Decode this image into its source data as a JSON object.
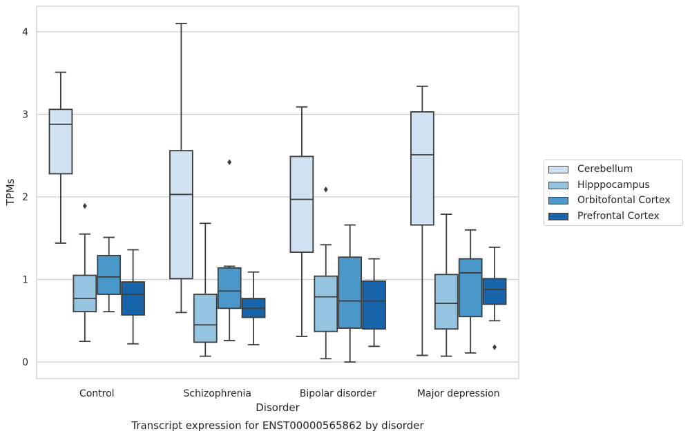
{
  "chart_data": {
    "type": "box",
    "title": "Transcript expression for ENST00000565862 by disorder",
    "xlabel": "Disorder",
    "ylabel": "TPMs",
    "ylim": [
      -0.2,
      4.3
    ],
    "yticks": [
      0,
      1,
      2,
      3,
      4
    ],
    "grid": true,
    "legend_position": "right",
    "categories": [
      "Control",
      "Schizophrenia",
      "Bipolar disorder",
      "Major depression"
    ],
    "series": [
      {
        "name": "Cerebellum",
        "color": "#d0e1f2",
        "boxes": [
          {
            "whislo": 1.44,
            "q1": 2.28,
            "med": 2.88,
            "q3": 3.06,
            "whishi": 3.51,
            "fliers": []
          },
          {
            "whislo": 0.6,
            "q1": 1.01,
            "med": 2.03,
            "q3": 2.56,
            "whishi": 4.1,
            "fliers": []
          },
          {
            "whislo": 0.31,
            "q1": 1.33,
            "med": 1.97,
            "q3": 2.49,
            "whishi": 3.09,
            "fliers": []
          },
          {
            "whislo": 0.08,
            "q1": 1.66,
            "med": 2.51,
            "q3": 3.03,
            "whishi": 3.34,
            "fliers": []
          }
        ]
      },
      {
        "name": "Hipppocampus",
        "color": "#94c4df",
        "boxes": [
          {
            "whislo": 0.25,
            "q1": 0.61,
            "med": 0.77,
            "q3": 1.05,
            "whishi": 1.55,
            "fliers": [
              1.89
            ]
          },
          {
            "whislo": 0.07,
            "q1": 0.24,
            "med": 0.45,
            "q3": 0.82,
            "whishi": 1.68,
            "fliers": []
          },
          {
            "whislo": 0.04,
            "q1": 0.37,
            "med": 0.79,
            "q3": 1.04,
            "whishi": 1.42,
            "fliers": [
              2.09
            ]
          },
          {
            "whislo": 0.07,
            "q1": 0.4,
            "med": 0.71,
            "q3": 1.06,
            "whishi": 1.79,
            "fliers": []
          }
        ]
      },
      {
        "name": "Orbitofontal Cortex",
        "color": "#4a98c9",
        "boxes": [
          {
            "whislo": 0.61,
            "q1": 0.82,
            "med": 1.03,
            "q3": 1.29,
            "whishi": 1.51,
            "fliers": []
          },
          {
            "whislo": 0.26,
            "q1": 0.65,
            "med": 0.86,
            "q3": 1.14,
            "whishi": 1.16,
            "fliers": [
              2.42
            ]
          },
          {
            "whislo": 0.0,
            "q1": 0.41,
            "med": 0.74,
            "q3": 1.27,
            "whishi": 1.66,
            "fliers": []
          },
          {
            "whislo": 0.11,
            "q1": 0.55,
            "med": 1.08,
            "q3": 1.25,
            "whishi": 1.6,
            "fliers": []
          }
        ]
      },
      {
        "name": "Prefrontal Cortex",
        "color": "#1764ab",
        "boxes": [
          {
            "whislo": 0.22,
            "q1": 0.57,
            "med": 0.82,
            "q3": 0.97,
            "whishi": 1.36,
            "fliers": []
          },
          {
            "whislo": 0.21,
            "q1": 0.54,
            "med": 0.65,
            "q3": 0.77,
            "whishi": 1.09,
            "fliers": []
          },
          {
            "whislo": 0.19,
            "q1": 0.4,
            "med": 0.74,
            "q3": 0.98,
            "whishi": 1.25,
            "fliers": []
          },
          {
            "whislo": 0.5,
            "q1": 0.7,
            "med": 0.88,
            "q3": 1.01,
            "whishi": 1.39,
            "fliers": [
              0.18
            ]
          }
        ]
      }
    ]
  }
}
